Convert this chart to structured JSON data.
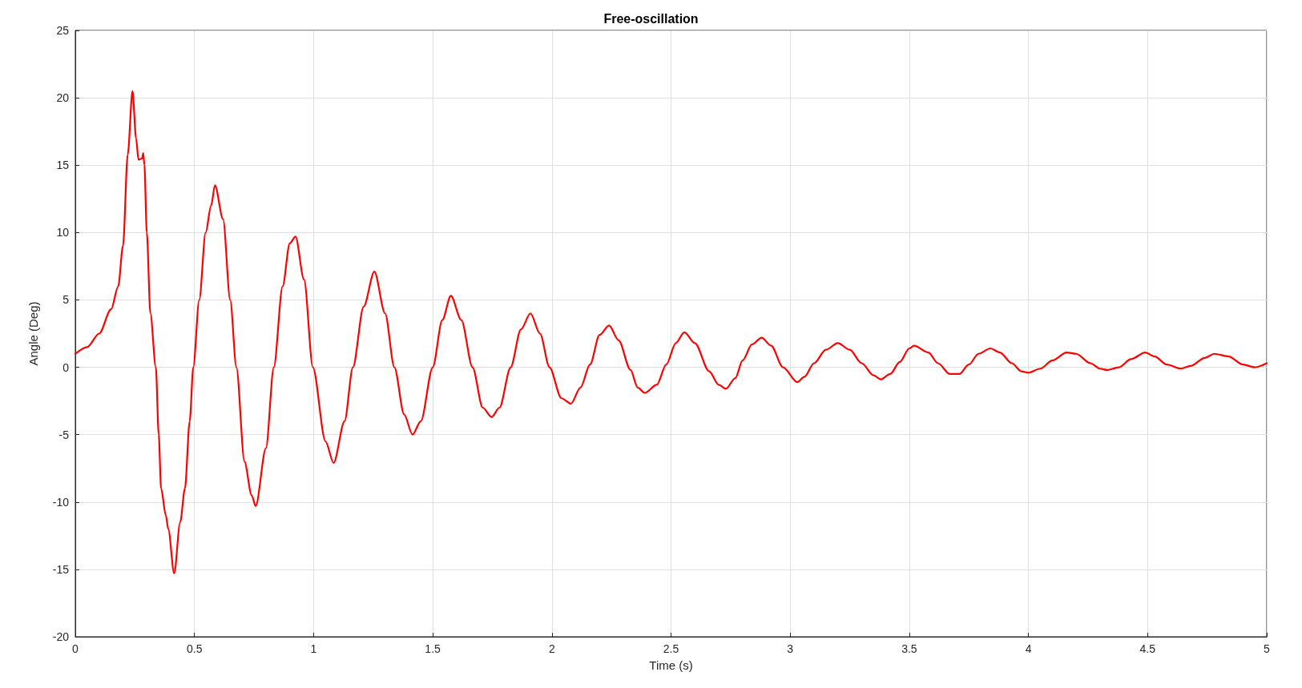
{
  "chart_data": {
    "type": "line",
    "title": "Free-oscillation",
    "xlabel": "Time (s)",
    "ylabel": "Angle (Deg)",
    "xlim": [
      0,
      5
    ],
    "xticks": [
      0,
      0.5,
      1,
      1.5,
      2,
      2.5,
      3,
      3.5,
      4,
      4.5,
      5
    ],
    "ylim": [
      -20,
      25
    ],
    "yticks": [
      -20,
      -15,
      -10,
      -5,
      0,
      5,
      10,
      15,
      20,
      25
    ],
    "grid": true,
    "marker": "none",
    "line_style": "solid",
    "series": [
      {
        "color": "#ff0000",
        "x": [
          0,
          0.05,
          0.1,
          0.15,
          0.18,
          0.2,
          0.22,
          0.24,
          0.255,
          0.265,
          0.28,
          0.285,
          0.29,
          0.3,
          0.315,
          0.338,
          0.35,
          0.36,
          0.38,
          0.39,
          0.415,
          0.44,
          0.46,
          0.48,
          0.495,
          0.52,
          0.547,
          0.57,
          0.586,
          0.62,
          0.65,
          0.676,
          0.71,
          0.74,
          0.757,
          0.8,
          0.833,
          0.87,
          0.9,
          0.924,
          0.96,
          0.997,
          1.05,
          1.084,
          1.13,
          1.165,
          1.21,
          1.255,
          1.3,
          1.339,
          1.38,
          1.415,
          1.45,
          1.5,
          1.54,
          1.576,
          1.62,
          1.667,
          1.71,
          1.747,
          1.78,
          1.827,
          1.87,
          1.91,
          1.95,
          1.99,
          2.04,
          2.08,
          2.12,
          2.16,
          2.2,
          2.24,
          2.28,
          2.33,
          2.36,
          2.39,
          2.44,
          2.48,
          2.52,
          2.556,
          2.6,
          2.66,
          2.7,
          2.73,
          2.77,
          2.8,
          2.84,
          2.88,
          2.92,
          2.97,
          3.03,
          3.06,
          3.1,
          3.15,
          3.2,
          3.25,
          3.3,
          3.35,
          3.38,
          3.42,
          3.46,
          3.5,
          3.52,
          3.58,
          3.62,
          3.67,
          3.71,
          3.75,
          3.79,
          3.84,
          3.88,
          3.93,
          3.97,
          4.0,
          4.05,
          4.1,
          4.16,
          4.2,
          4.26,
          4.3,
          4.33,
          4.38,
          4.43,
          4.49,
          4.53,
          4.58,
          4.64,
          4.68,
          4.74,
          4.78,
          4.84,
          4.9,
          4.95,
          5.0
        ],
        "values": [
          1.0,
          1.5,
          2.5,
          4.3,
          6,
          9,
          15.8,
          20.5,
          17,
          15.4,
          15.5,
          15.9,
          15,
          10,
          4,
          0,
          -5,
          -9,
          -11,
          -12,
          -15.3,
          -11.5,
          -9,
          -4,
          0,
          5,
          10,
          12,
          13.5,
          11,
          5,
          0,
          -7,
          -9.5,
          -10.3,
          -6,
          0,
          6,
          9.2,
          9.7,
          6.5,
          0,
          -5.5,
          -7.1,
          -4,
          0,
          4.5,
          7.1,
          4,
          0,
          -3.5,
          -5,
          -4,
          0,
          3.5,
          5.3,
          3.5,
          0,
          -3,
          -3.7,
          -3,
          0,
          2.8,
          4.0,
          2.5,
          0,
          -2.3,
          -2.7,
          -1.5,
          0.2,
          2.4,
          3.1,
          2,
          -0.2,
          -1.5,
          -1.9,
          -1.3,
          0.2,
          1.8,
          2.6,
          1.8,
          -0.3,
          -1.3,
          -1.6,
          -0.8,
          0.5,
          1.7,
          2.2,
          1.6,
          0,
          -1.1,
          -0.7,
          0.3,
          1.3,
          1.8,
          1.3,
          0.3,
          -0.6,
          -0.9,
          -0.5,
          0.4,
          1.4,
          1.6,
          1.1,
          0.3,
          -0.5,
          -0.5,
          0.2,
          1.0,
          1.4,
          1.1,
          0.3,
          -0.3,
          -0.4,
          -0.1,
          0.5,
          1.1,
          1.0,
          0.3,
          -0.1,
          -0.2,
          0,
          0.6,
          1.1,
          0.8,
          0.2,
          -0.1,
          0.1,
          0.7,
          1.0,
          0.8,
          0.2,
          0,
          0.3
        ]
      }
    ]
  }
}
